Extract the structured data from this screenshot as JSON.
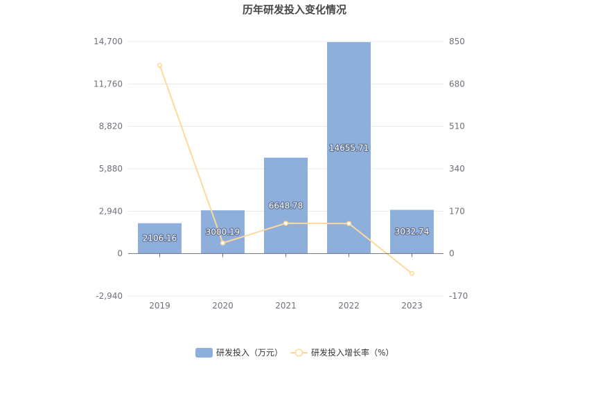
{
  "chart_data": {
    "type": "bar",
    "title": "历年研发投入变化情况",
    "categories": [
      "2019",
      "2020",
      "2021",
      "2022",
      "2023"
    ],
    "series": [
      {
        "name": "研发投入（万元）",
        "type": "bar",
        "axis": "left",
        "values": [
          2106.16,
          3000.19,
          6648.78,
          14655.71,
          3032.74
        ],
        "labels": [
          "2106.16",
          "3000.19",
          "6648.78",
          "14655.71",
          "3032.74"
        ]
      },
      {
        "name": "研发投入增长率（%）",
        "type": "line",
        "axis": "right",
        "values": [
          755,
          42.45,
          121.61,
          120.43,
          -79.31
        ]
      }
    ],
    "y_left": {
      "min": -2940,
      "max": 14700,
      "ticks": [
        14700,
        11760,
        8820,
        5880,
        2940,
        0,
        -2940
      ],
      "tick_labels": [
        "14,700",
        "11,760",
        "8,820",
        "5,880",
        "2,940",
        "0",
        "-2,940"
      ]
    },
    "y_right": {
      "min": -170,
      "max": 850,
      "ticks": [
        850,
        680,
        510,
        340,
        170,
        0,
        -170
      ],
      "tick_labels": [
        "850",
        "680",
        "510",
        "340",
        "170",
        "0",
        "-170"
      ]
    },
    "grid": true,
    "legend": "bottom",
    "colors": {
      "bar": "#8eaedc",
      "line": "#fdd99b",
      "grid": "#e8e8e8",
      "axis": "#6e7079"
    }
  }
}
